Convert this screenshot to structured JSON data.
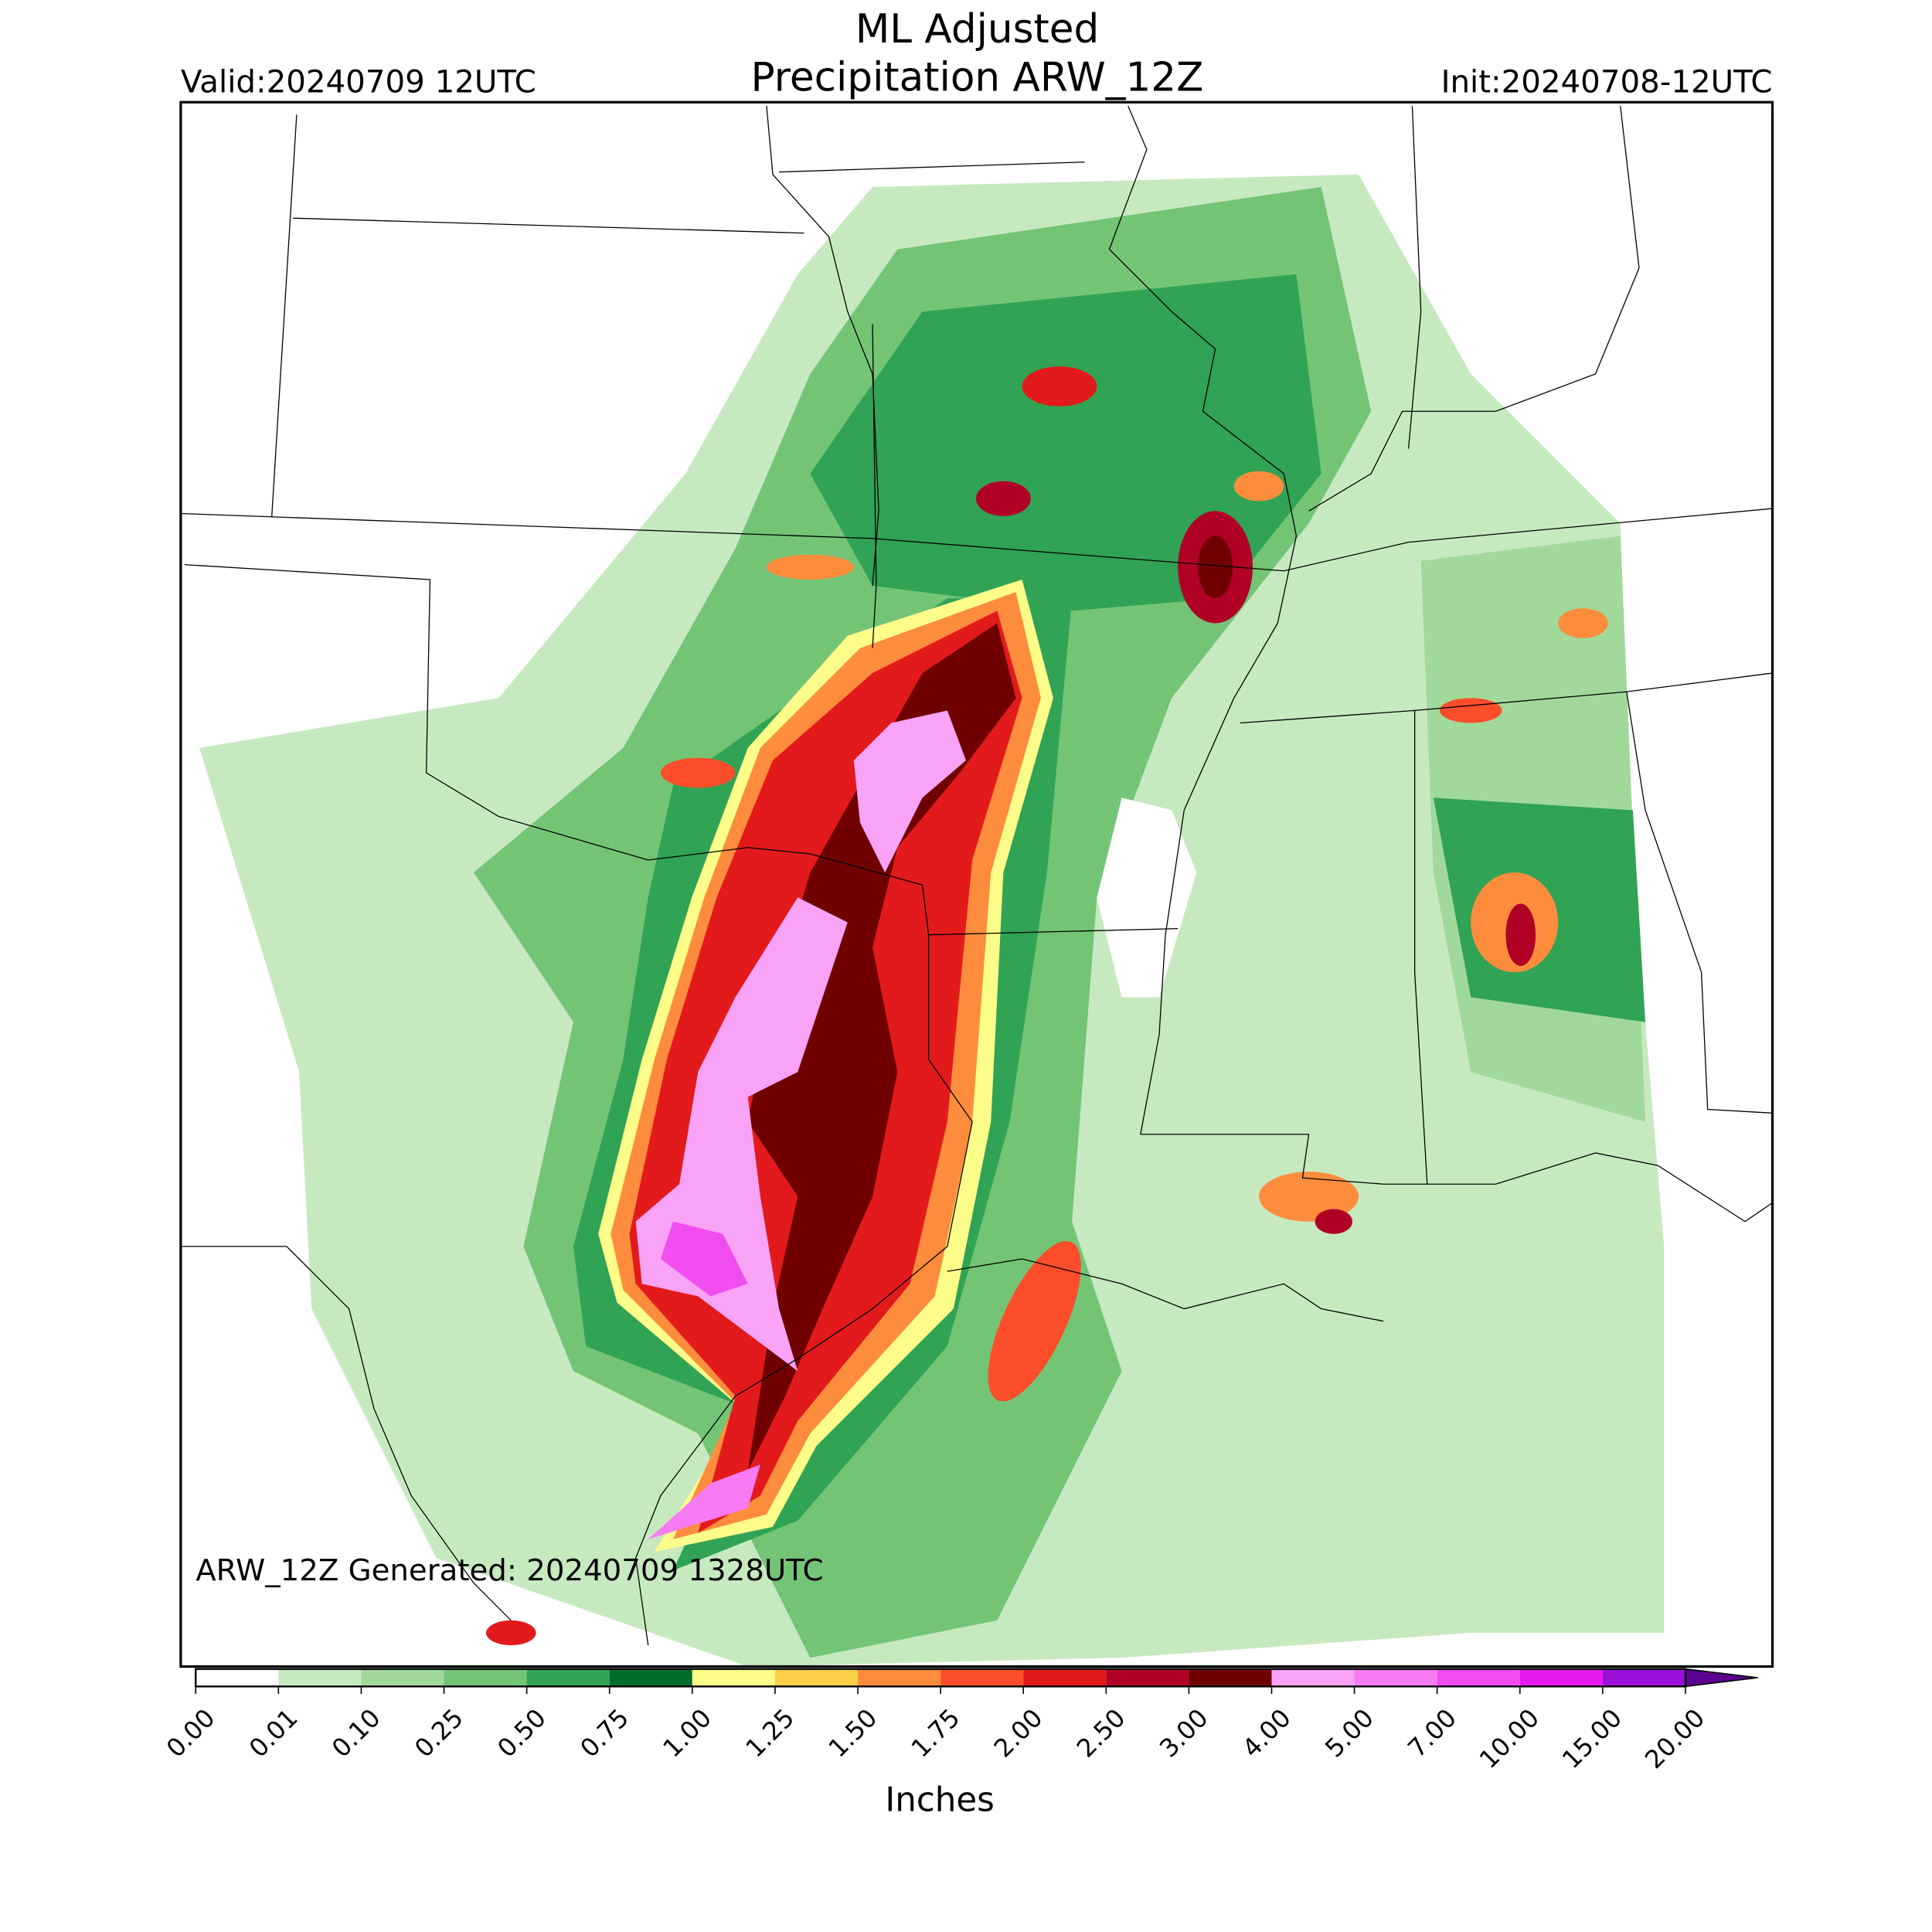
{
  "map": {
    "title": [
      "ML Adjusted",
      "Precipitation ARW_12Z"
    ],
    "valid": "Valid:20240709 12UTC",
    "init": "Init:20240708-12UTC",
    "generated": "ARW_12Z Generated: 20240709 1328UTC",
    "colorbar": {
      "label": "Inches",
      "ticks": [
        {
          "value": 0,
          "label": "0.00"
        },
        {
          "value": 0.01,
          "label": "0.01"
        },
        {
          "value": 0.1,
          "label": "0.10"
        },
        {
          "value": 0.25,
          "label": "0.25"
        },
        {
          "value": 0.5,
          "label": "0.50"
        },
        {
          "value": 0.75,
          "label": "0.75"
        },
        {
          "value": 1,
          "label": "1.00"
        },
        {
          "value": 1.25,
          "label": "1.25"
        },
        {
          "value": 1.5,
          "label": "1.50"
        },
        {
          "value": 1.75,
          "label": "1.75"
        },
        {
          "value": 2,
          "label": "2.00"
        },
        {
          "value": 2.5,
          "label": "2.50"
        },
        {
          "value": 3,
          "label": "3.00"
        },
        {
          "value": 4,
          "label": "4.00"
        },
        {
          "value": 5,
          "label": "5.00"
        },
        {
          "value": 7,
          "label": "7.00"
        },
        {
          "value": 10,
          "label": "10.00"
        },
        {
          "value": 15,
          "label": "15.00"
        },
        {
          "value": 20,
          "label": "20.00"
        }
      ],
      "colors": [
        "#ffffff",
        "#c7e9c0",
        "#a1d99b",
        "#74c476",
        "#31a354",
        "#006d2c",
        "#fdfd8a",
        "#fdd049",
        "#fd8d3c",
        "#fc4e2a",
        "#e31a1c",
        "#b10026",
        "#700000",
        "#f9a3f7",
        "#f77bf2",
        "#f24df0",
        "#e619f0",
        "#9a10d8"
      ],
      "extend_color": "#5c0090"
    }
  }
}
